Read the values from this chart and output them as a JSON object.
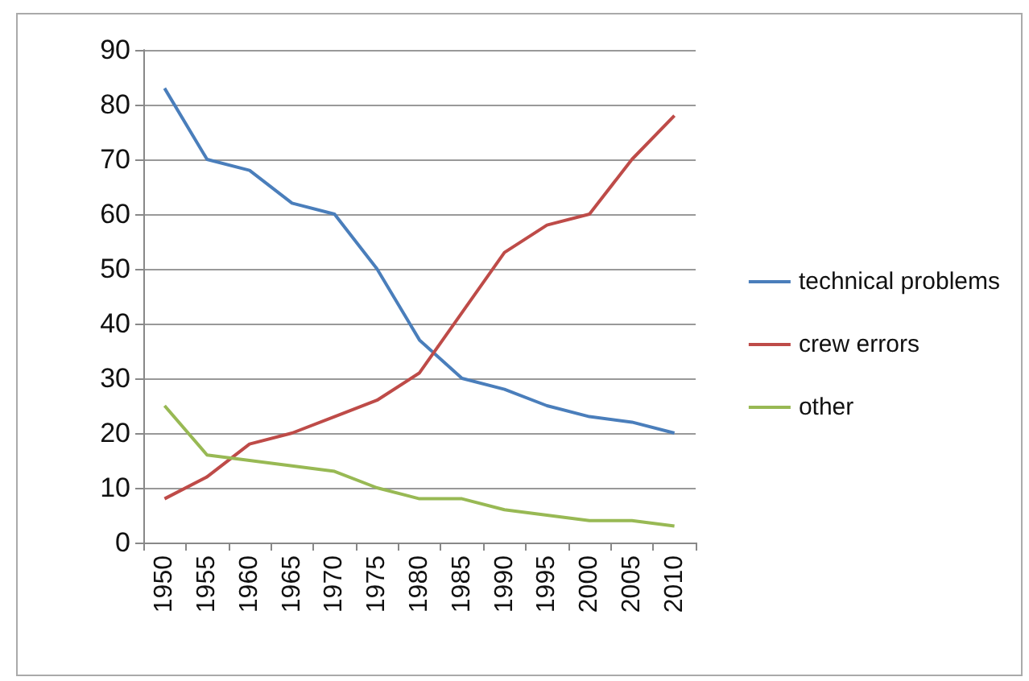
{
  "chart_data": {
    "type": "line",
    "categories": [
      "1950",
      "1955",
      "1960",
      "1965",
      "1970",
      "1975",
      "1980",
      "1985",
      "1990",
      "1995",
      "2000",
      "2005",
      "2010"
    ],
    "series": [
      {
        "name": "technical problems",
        "color": "#4a7ebb",
        "values": [
          83,
          70,
          68,
          62,
          60,
          50,
          37,
          30,
          28,
          25,
          23,
          22,
          20
        ]
      },
      {
        "name": "crew errors",
        "color": "#be4b48",
        "values": [
          8,
          12,
          18,
          20,
          23,
          26,
          31,
          42,
          53,
          58,
          60,
          70,
          78
        ]
      },
      {
        "name": "other",
        "color": "#98b954",
        "values": [
          25,
          16,
          15,
          14,
          13,
          10,
          8,
          8,
          6,
          5,
          4,
          4,
          3
        ]
      }
    ],
    "ylim": [
      0,
      90
    ],
    "yticks": [
      0,
      10,
      20,
      30,
      40,
      50,
      60,
      70,
      80,
      90
    ],
    "grid": "y",
    "legend": "right",
    "marker": "none",
    "line_style": "solid"
  }
}
